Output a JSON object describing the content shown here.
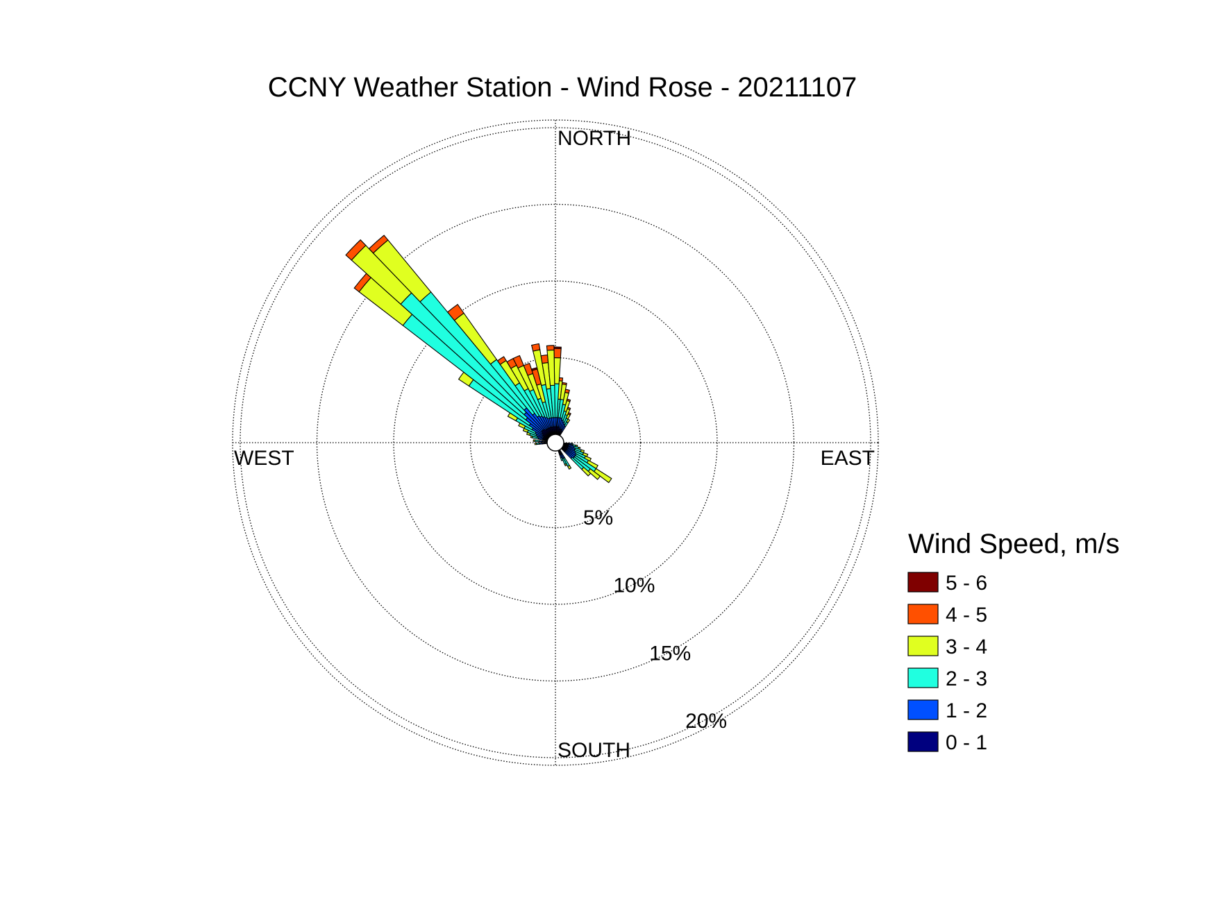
{
  "chart_data": {
    "type": "wind-rose",
    "title": "CCNY Weather Station - Wind Rose - 20211107",
    "directions": {
      "north": "NORTH",
      "east": "EAST",
      "south": "SOUTH",
      "west": "WEST"
    },
    "radial_axis": {
      "ticks": [
        5,
        10,
        15,
        20
      ],
      "tick_labels": [
        "5%",
        "10%",
        "15%",
        "20%"
      ],
      "max": 20.5,
      "grid": true
    },
    "legend": {
      "title": "Wind Speed, m/s",
      "placement": "right",
      "entries": [
        {
          "label": "5 - 6",
          "color": "#7f0000"
        },
        {
          "label": "4 - 5",
          "color": "#ff5000"
        },
        {
          "label": "3 - 4",
          "color": "#e0ff20"
        },
        {
          "label": "2 - 3",
          "color": "#20ffe0"
        },
        {
          "label": "1 - 2",
          "color": "#0050ff"
        },
        {
          "label": "0 - 1",
          "color": "#00007f"
        }
      ]
    },
    "bin_colors": [
      "#00007f",
      "#0050ff",
      "#20ffe0",
      "#e0ff20",
      "#ff5000",
      "#7f0000"
    ],
    "sectors": [
      {
        "dir": 4.3,
        "cum": [
          0.5,
          1.1,
          2.3,
          3.5,
          3.7,
          3.7
        ]
      },
      {
        "dir": 1.3,
        "cum": [
          0.5,
          1.1,
          3.3,
          5.0,
          5.6,
          5.7
        ]
      },
      {
        "dir": 8.6,
        "cum": [
          0.5,
          1.1,
          2.3,
          3.3,
          3.4,
          3.4
        ]
      },
      {
        "dir": 12.9,
        "cum": [
          0.5,
          1.1,
          2.0,
          2.8,
          3.0,
          3.0
        ]
      },
      {
        "dir": 17.2,
        "cum": [
          0.4,
          1.0,
          1.6,
          2.3,
          2.4,
          2.4
        ]
      },
      {
        "dir": 21.5,
        "cum": [
          0.4,
          0.9,
          1.4,
          1.8,
          1.9,
          1.9
        ]
      },
      {
        "dir": 25.8,
        "cum": [
          0.4,
          0.8,
          1.2,
          1.5,
          1.6,
          1.6
        ]
      },
      {
        "dir": 30.1,
        "cum": [
          0.3,
          0.7,
          1.0,
          1.2,
          1.2,
          1.2
        ]
      },
      {
        "dir": 94.6,
        "cum": [
          0.3,
          0.5,
          0.6,
          0.6,
          0.6,
          0.6
        ]
      },
      {
        "dir": 98.9,
        "cum": [
          0.3,
          0.6,
          0.8,
          0.9,
          0.9,
          0.9
        ]
      },
      {
        "dir": 103.2,
        "cum": [
          0.3,
          0.7,
          1.0,
          1.1,
          1.1,
          1.1
        ]
      },
      {
        "dir": 107.5,
        "cum": [
          0.3,
          0.8,
          1.2,
          1.4,
          1.4,
          1.4
        ]
      },
      {
        "dir": 111.8,
        "cum": [
          0.3,
          0.8,
          1.4,
          1.7,
          1.7,
          1.7
        ]
      },
      {
        "dir": 116.1,
        "cum": [
          0.3,
          0.9,
          1.6,
          2.0,
          2.0,
          2.0
        ]
      },
      {
        "dir": 120.4,
        "cum": [
          0.3,
          1.0,
          1.9,
          2.6,
          2.6,
          2.6
        ]
      },
      {
        "dir": 124.7,
        "cum": [
          0.3,
          1.0,
          2.6,
          3.8,
          3.8,
          3.8
        ]
      },
      {
        "dir": 129.0,
        "cum": [
          0.3,
          1.0,
          2.3,
          3.1,
          3.1,
          3.1
        ]
      },
      {
        "dir": 133.3,
        "cum": [
          0.3,
          0.9,
          1.9,
          2.5,
          2.5,
          2.5
        ]
      },
      {
        "dir": 150.5,
        "cum": [
          0.3,
          0.6,
          1.2,
          1.4,
          1.4,
          1.4
        ]
      },
      {
        "dir": 154.8,
        "cum": [
          0.3,
          0.6,
          1.0,
          1.1,
          1.1,
          1.1
        ]
      },
      {
        "dir": 159.1,
        "cum": [
          0.3,
          0.5,
          0.7,
          0.7,
          0.7,
          0.7
        ]
      },
      {
        "dir": 266.7,
        "cum": [
          0.3,
          0.5,
          0.7,
          0.8,
          0.8,
          0.8
        ]
      },
      {
        "dir": 275.3,
        "cum": [
          0.3,
          0.5,
          0.8,
          0.9,
          0.9,
          0.9
        ]
      },
      {
        "dir": 283.9,
        "cum": [
          0.3,
          0.6,
          1.0,
          1.1,
          1.1,
          1.1
        ]
      },
      {
        "dir": 288.2,
        "cum": [
          0.3,
          0.7,
          1.2,
          1.4,
          1.4,
          1.4
        ]
      },
      {
        "dir": 292.5,
        "cum": [
          0.3,
          0.8,
          1.4,
          1.7,
          1.7,
          1.7
        ]
      },
      {
        "dir": 296.8,
        "cum": [
          0.3,
          0.9,
          1.7,
          2.1,
          2.1,
          2.1
        ]
      },
      {
        "dir": 301.1,
        "cum": [
          0.4,
          1.2,
          2.4,
          3.0,
          3.0,
          3.0
        ]
      },
      {
        "dir": 305.4,
        "cum": [
          0.5,
          1.5,
          6.2,
          7.0,
          7.0,
          7.0
        ]
      },
      {
        "dir": 309.7,
        "cum": [
          0.6,
          1.9,
          12.0,
          15.6,
          16.0,
          16.0
        ]
      },
      {
        "dir": 314.0,
        "cum": [
          0.6,
          2.2,
          13.0,
          17.3,
          17.8,
          17.8
        ]
      },
      {
        "dir": 318.3,
        "cum": [
          0.6,
          2.4,
          12.2,
          16.6,
          17.0,
          17.0
        ]
      },
      {
        "dir": 322.6,
        "cum": [
          0.5,
          1.8,
          6.1,
          9.8,
          10.5,
          10.5
        ]
      },
      {
        "dir": 326.9,
        "cum": [
          0.5,
          1.5,
          4.0,
          5.7,
          6.0,
          6.0
        ]
      },
      {
        "dir": 331.2,
        "cum": [
          0.5,
          1.4,
          3.4,
          5.1,
          5.6,
          5.6
        ]
      },
      {
        "dir": 335.5,
        "cum": [
          0.5,
          1.3,
          3.2,
          4.9,
          5.6,
          5.6
        ]
      },
      {
        "dir": 339.8,
        "cum": [
          0.5,
          1.2,
          2.5,
          4.2,
          4.9,
          4.9
        ]
      },
      {
        "dir": 344.1,
        "cum": [
          0.5,
          1.1,
          2.2,
          3.4,
          4.4,
          4.5
        ]
      },
      {
        "dir": 348.4,
        "cum": [
          0.5,
          1.1,
          3.3,
          5.6,
          6.0,
          6.0
        ]
      },
      {
        "dir": 352.7,
        "cum": [
          0.5,
          1.1,
          3.0,
          4.7,
          5.2,
          5.2
        ]
      },
      {
        "dir": 357.0,
        "cum": [
          0.5,
          1.1,
          3.2,
          5.5,
          5.8,
          5.8
        ]
      }
    ],
    "sector_width_deg": 4.3
  }
}
